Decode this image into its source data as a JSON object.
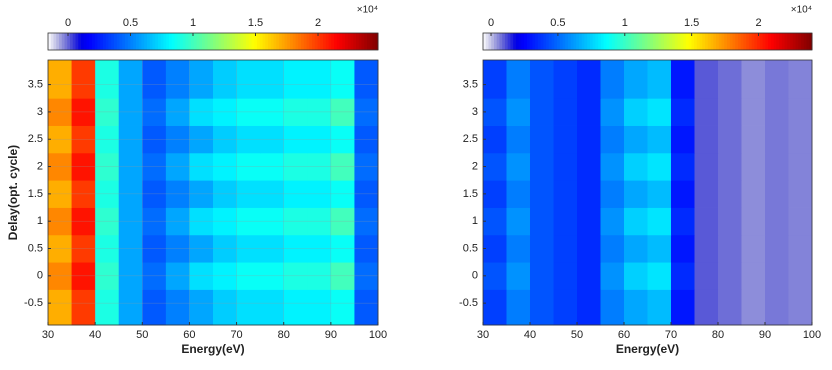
{
  "chart_data": [
    {
      "type": "heatmap",
      "colormap": "jet",
      "xlabel": "Energy(eV)",
      "ylabel": "Delay(opt. cycle)",
      "xlim": [
        30,
        100
      ],
      "xticks": [
        30,
        40,
        50,
        60,
        70,
        80,
        90,
        100
      ],
      "ylim": [
        -0.9,
        3.95
      ],
      "yticks": [
        -0.5,
        0,
        0.5,
        1,
        1.5,
        2,
        2.5,
        3,
        3.5
      ],
      "grid": true,
      "x": [
        32.5,
        37.5,
        42.5,
        47.5,
        52.5,
        57.5,
        62.5,
        67.5,
        72.5,
        77.5,
        82.5,
        87.5,
        92.5,
        97.5
      ],
      "y": [
        -0.5,
        0,
        0.5,
        1,
        1.5,
        2,
        2.5,
        3,
        3.5
      ],
      "z": [
        [
          17000,
          20000,
          9000,
          6000,
          4000,
          5000,
          6000,
          7000,
          7500,
          7500,
          8000,
          8000,
          8500,
          4000
        ],
        [
          18000,
          21000,
          9500,
          6000,
          4500,
          6000,
          7500,
          8000,
          8500,
          8500,
          9000,
          9000,
          10000,
          4500
        ],
        [
          17000,
          20000,
          9000,
          6000,
          4000,
          5000,
          6000,
          7000,
          7500,
          7500,
          8000,
          8000,
          8500,
          4000
        ],
        [
          18000,
          21000,
          9500,
          6000,
          4500,
          6000,
          7500,
          8000,
          8500,
          8500,
          9000,
          9000,
          10000,
          4500
        ],
        [
          17000,
          20000,
          9000,
          6000,
          4000,
          5000,
          6000,
          7000,
          7500,
          7500,
          8000,
          8000,
          8500,
          4000
        ],
        [
          18000,
          21000,
          9500,
          6000,
          4500,
          6000,
          7500,
          8000,
          8500,
          8500,
          9000,
          9000,
          10000,
          4500
        ],
        [
          17000,
          20000,
          9000,
          6000,
          4000,
          5000,
          6000,
          7000,
          7500,
          7500,
          8000,
          8000,
          8500,
          4000
        ],
        [
          18000,
          21000,
          9500,
          6000,
          4500,
          6000,
          7500,
          8000,
          8500,
          8500,
          9000,
          9000,
          10000,
          4500
        ],
        [
          17000,
          20000,
          9000,
          6000,
          4000,
          5000,
          6000,
          7000,
          7500,
          7500,
          8000,
          8000,
          8500,
          4000
        ]
      ],
      "clim": [
        -1600,
        24800
      ],
      "colorbar_ticks": [
        0,
        {
          "value": 5000,
          "label": "0.5"
        },
        {
          "value": 10000,
          "label": "1"
        },
        {
          "value": 15000,
          "label": "1.5"
        },
        {
          "value": 20000,
          "label": "2"
        }
      ],
      "colorbar_multiplier": "×10⁴"
    },
    {
      "type": "heatmap",
      "colormap": "jet",
      "xlabel": "Energy(eV)",
      "xlim": [
        30,
        100
      ],
      "xticks": [
        30,
        40,
        50,
        60,
        70,
        80,
        90,
        100
      ],
      "ylim": [
        -0.9,
        3.95
      ],
      "yticks": [
        -0.5,
        0,
        0.5,
        1,
        1.5,
        2,
        2.5,
        3,
        3.5
      ],
      "grid": false,
      "x": [
        32.5,
        37.5,
        42.5,
        47.5,
        52.5,
        57.5,
        62.5,
        67.5,
        72.5,
        77.5,
        82.5,
        87.5,
        92.5,
        97.5
      ],
      "y": [
        -0.5,
        0,
        0.5,
        1,
        1.5,
        2,
        2.5,
        3,
        3.5
      ],
      "z": [
        [
          4000,
          5500,
          4500,
          4000,
          3500,
          5500,
          6500,
          7000,
          3000,
          1000,
          800,
          500,
          700,
          600
        ],
        [
          4500,
          6000,
          4500,
          4000,
          3500,
          6000,
          7500,
          8000,
          3500,
          1000,
          800,
          500,
          700,
          600
        ],
        [
          4000,
          5500,
          4500,
          4000,
          3500,
          5500,
          6500,
          7000,
          3000,
          1000,
          800,
          500,
          700,
          600
        ],
        [
          4500,
          6000,
          4500,
          4000,
          3500,
          6000,
          7500,
          8000,
          3500,
          1000,
          800,
          500,
          700,
          600
        ],
        [
          4000,
          5500,
          4500,
          4000,
          3500,
          5500,
          6500,
          7000,
          3000,
          1000,
          800,
          500,
          700,
          600
        ],
        [
          4500,
          6000,
          4500,
          4000,
          3500,
          6000,
          7500,
          8000,
          3500,
          1000,
          800,
          500,
          700,
          600
        ],
        [
          4000,
          5500,
          4500,
          4000,
          3500,
          5500,
          6500,
          7000,
          3000,
          1000,
          800,
          500,
          700,
          600
        ],
        [
          4500,
          6000,
          4500,
          4000,
          3500,
          6000,
          7500,
          8000,
          3500,
          1000,
          800,
          500,
          700,
          600
        ],
        [
          4000,
          5500,
          4500,
          4000,
          3500,
          5500,
          6500,
          7000,
          3000,
          1000,
          800,
          500,
          700,
          600
        ]
      ],
      "clim": [
        -600,
        24000
      ],
      "colorbar_ticks": [
        0,
        {
          "value": 5000,
          "label": "0.5"
        },
        {
          "value": 10000,
          "label": "1"
        },
        {
          "value": 15000,
          "label": "1.5"
        },
        {
          "value": 20000,
          "label": "2"
        }
      ],
      "colorbar_multiplier": "×10⁴"
    }
  ]
}
